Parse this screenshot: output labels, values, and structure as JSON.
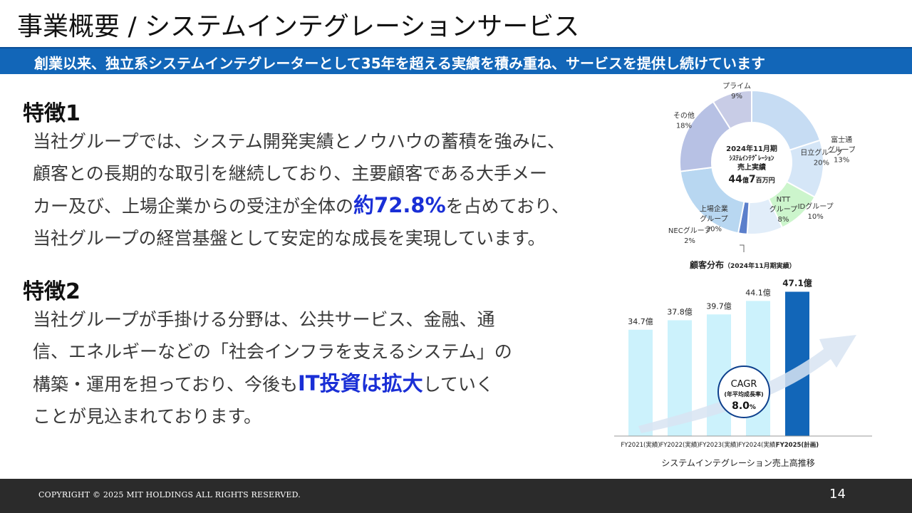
{
  "slide": {
    "title": "事業概要 / システムインテグレーションサービス",
    "banner": "創業以来、独立系システムインテグレーターとして35年を超える実績を積み重ね、サービスを提供し続けています",
    "page_number": "14",
    "copyright": "COPYRIGHT © 2025 MIT HOLDINGS ALL RIGHTS RESERVED."
  },
  "feature1": {
    "heading": "特徴1",
    "line1": "当社グループでは、システム開発実績とノウハウの蓄積を強みに、",
    "line2": "顧客との長期的な取引を継続しており、主要顧客である大手メー",
    "line3_pre": "カー及び、上場企業からの受注が全体の",
    "line3_hl": "約72.8%",
    "line3_post": "を占めており、",
    "line4": "当社グループの経営基盤として安定的な成長を実現しています。"
  },
  "feature2": {
    "heading": "特徴2",
    "line1": "当社グループが手掛ける分野は、公共サービス、金融、通",
    "line2": "信、エネルギーなどの「社会インフラを支えるシステム」の",
    "line3_pre": "構築・運用を担っており、今後も",
    "line3_hl": "IT投資は拡大",
    "line3_post": "していく",
    "line4": "ことが見込まれております。"
  },
  "chart_data": [
    {
      "type": "pie",
      "title": "顧客分布",
      "subtitle": "（2024年11月期実績）",
      "center_lines": [
        "2024年11月期",
        "ｼｽﾃﾑｲﾝﾃｸﾞﾚｰｼｮﾝ",
        "売上実績"
      ],
      "center_amount_num1": "44",
      "center_amount_unit1": "億",
      "center_amount_num2": "7",
      "center_amount_unit2": "百万円",
      "slices": [
        {
          "label": [
            "日立グループ"
          ],
          "pct": "20%",
          "value": 20,
          "color": "#c6dcf3"
        },
        {
          "label": [
            "富士通",
            "グループ"
          ],
          "pct": "13%",
          "value": 13,
          "color": "#d5e6f7"
        },
        {
          "label": [
            "IDグループ"
          ],
          "pct": "10%",
          "value": 10,
          "color": "#ccf5cc"
        },
        {
          "label": [
            "NTT",
            "グループ"
          ],
          "pct": "8%",
          "value": 8,
          "color": "#e1edf9"
        },
        {
          "label": [
            "NECグループ"
          ],
          "pct": "2%",
          "value": 2,
          "color": "#5b7fcb"
        },
        {
          "label": [
            "上場企業",
            "グループ"
          ],
          "pct": "20%",
          "value": 20,
          "color": "#b8d7f1"
        },
        {
          "label": [
            "その他"
          ],
          "pct": "18%",
          "value": 18,
          "color": "#b7c1e4"
        },
        {
          "label": [
            "プライム"
          ],
          "pct": "9%",
          "value": 9,
          "color": "#c8cce6"
        }
      ]
    },
    {
      "type": "bar",
      "title": "システムインテグレーション売上高推移",
      "categories": [
        "FY2021(実績)",
        "FY2022(実績)",
        "FY2023(実績)",
        "FY2024(実績)",
        "FY2025(計画)"
      ],
      "values": [
        34.7,
        37.8,
        39.7,
        44.1,
        47.1
      ],
      "value_labels": [
        "34.7億",
        "37.8億",
        "39.7億",
        "44.1億",
        "47.1億"
      ],
      "unit": "億",
      "colors": {
        "actual": "#ccf2fc",
        "plan": "#1266b8"
      },
      "cagr": {
        "label": "CAGR",
        "sub": "(年平均成長率)",
        "value": "8.0",
        "unit": "%"
      }
    }
  ]
}
